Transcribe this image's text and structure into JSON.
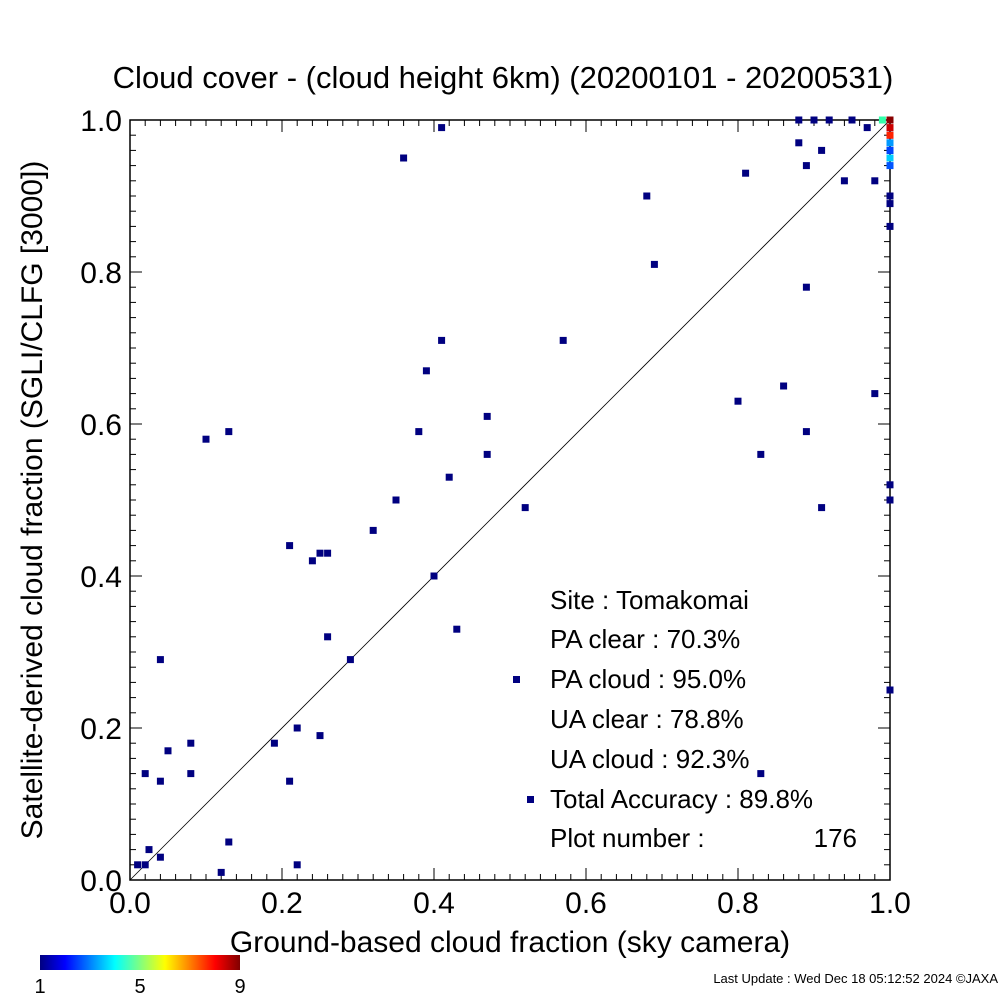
{
  "chart_data": {
    "type": "scatter",
    "title": "Cloud cover - (cloud height 6km)  (20200101 - 20200531)",
    "xlabel": "Ground-based cloud fraction (sky camera)",
    "ylabel": "Satellite-derived cloud fraction (SGLI/CLFG [3000])",
    "xlim": [
      0.0,
      1.0
    ],
    "ylim": [
      0.0,
      1.0
    ],
    "x_ticks": [
      "0.0",
      "0.2",
      "0.4",
      "0.6",
      "0.8",
      "1.0"
    ],
    "y_ticks": [
      "0.0",
      "0.2",
      "0.4",
      "0.6",
      "0.8",
      "1.0"
    ],
    "grid": false,
    "reference_line": "1:1 diagonal",
    "marker_color": "#000080",
    "points": [
      {
        "x": 0.01,
        "y": 0.02
      },
      {
        "x": 0.02,
        "y": 0.02
      },
      {
        "x": 0.02,
        "y": 0.14
      },
      {
        "x": 0.025,
        "y": 0.04
      },
      {
        "x": 0.04,
        "y": 0.29
      },
      {
        "x": 0.04,
        "y": 0.13
      },
      {
        "x": 0.04,
        "y": 0.03
      },
      {
        "x": 0.05,
        "y": 0.17
      },
      {
        "x": 0.08,
        "y": 0.18
      },
      {
        "x": 0.08,
        "y": 0.14
      },
      {
        "x": 0.1,
        "y": 0.58
      },
      {
        "x": 0.12,
        "y": 0.01
      },
      {
        "x": 0.13,
        "y": 0.59
      },
      {
        "x": 0.13,
        "y": 0.05
      },
      {
        "x": 0.19,
        "y": 0.18
      },
      {
        "x": 0.21,
        "y": 0.44
      },
      {
        "x": 0.21,
        "y": 0.13
      },
      {
        "x": 0.22,
        "y": 0.2
      },
      {
        "x": 0.22,
        "y": 0.02
      },
      {
        "x": 0.24,
        "y": 0.42
      },
      {
        "x": 0.25,
        "y": 0.43
      },
      {
        "x": 0.25,
        "y": 0.19
      },
      {
        "x": 0.26,
        "y": 0.43
      },
      {
        "x": 0.26,
        "y": 0.32
      },
      {
        "x": 0.29,
        "y": 0.29
      },
      {
        "x": 0.32,
        "y": 0.46
      },
      {
        "x": 0.35,
        "y": 0.5
      },
      {
        "x": 0.36,
        "y": 0.95
      },
      {
        "x": 0.38,
        "y": 0.59
      },
      {
        "x": 0.39,
        "y": 0.67
      },
      {
        "x": 0.4,
        "y": 0.4
      },
      {
        "x": 0.41,
        "y": 0.99
      },
      {
        "x": 0.41,
        "y": 0.71
      },
      {
        "x": 0.42,
        "y": 0.53
      },
      {
        "x": 0.43,
        "y": 0.33
      },
      {
        "x": 0.47,
        "y": 0.61
      },
      {
        "x": 0.47,
        "y": 0.56
      },
      {
        "x": 0.52,
        "y": 0.49
      },
      {
        "x": 0.57,
        "y": 0.71
      },
      {
        "x": 0.68,
        "y": 0.9
      },
      {
        "x": 0.69,
        "y": 0.81
      },
      {
        "x": 0.8,
        "y": 0.63
      },
      {
        "x": 0.81,
        "y": 0.93
      },
      {
        "x": 0.83,
        "y": 0.56
      },
      {
        "x": 0.83,
        "y": 0.14
      },
      {
        "x": 0.86,
        "y": 0.65
      },
      {
        "x": 0.88,
        "y": 1.0
      },
      {
        "x": 0.88,
        "y": 0.97
      },
      {
        "x": 0.89,
        "y": 0.94
      },
      {
        "x": 0.89,
        "y": 0.78
      },
      {
        "x": 0.89,
        "y": 0.59
      },
      {
        "x": 0.9,
        "y": 1.0
      },
      {
        "x": 0.91,
        "y": 0.96
      },
      {
        "x": 0.91,
        "y": 0.49
      },
      {
        "x": 0.92,
        "y": 1.0
      },
      {
        "x": 0.94,
        "y": 0.92
      },
      {
        "x": 0.95,
        "y": 1.0
      },
      {
        "x": 0.97,
        "y": 0.99
      },
      {
        "x": 0.98,
        "y": 0.92
      },
      {
        "x": 0.98,
        "y": 0.64
      },
      {
        "x": 1.0,
        "y": 0.98
      },
      {
        "x": 1.0,
        "y": 0.96
      },
      {
        "x": 1.0,
        "y": 0.9
      },
      {
        "x": 1.0,
        "y": 0.89
      },
      {
        "x": 1.0,
        "y": 0.86
      },
      {
        "x": 1.0,
        "y": 0.52
      },
      {
        "x": 1.0,
        "y": 0.5
      },
      {
        "x": 1.0,
        "y": 0.25
      }
    ],
    "dense_cells": [
      {
        "x": 0.99,
        "y": 1.0,
        "count": 4,
        "color": "#33ffaa"
      },
      {
        "x": 1.0,
        "y": 1.0,
        "count": 9,
        "color": "#880000"
      },
      {
        "x": 1.0,
        "y": 0.99,
        "count": 8,
        "color": "#cc0000"
      },
      {
        "x": 1.0,
        "y": 0.98,
        "count": 7,
        "color": "#ff2200"
      },
      {
        "x": 1.0,
        "y": 0.97,
        "count": 3,
        "color": "#0099ff"
      },
      {
        "x": 1.0,
        "y": 0.96,
        "count": 2,
        "color": "#0044ff"
      },
      {
        "x": 1.0,
        "y": 0.95,
        "count": 3,
        "color": "#00ccff"
      },
      {
        "x": 1.0,
        "y": 0.94,
        "count": 2,
        "color": "#0055ff"
      }
    ],
    "stats": {
      "site": "Site : Tomakomai",
      "pa_clear": "PA clear :  70.3%",
      "pa_cloud": "PA cloud :  95.0%",
      "ua_clear": "UA clear :  78.8%",
      "ua_cloud": "UA cloud :  92.3%",
      "total_accuracy": "Total Accuracy :  89.8%",
      "plot_number_label": "Plot number :",
      "plot_number_value": "176"
    },
    "colorbar": {
      "min": 1,
      "max": 9,
      "tick_labels": [
        "1",
        "5",
        "9"
      ],
      "colors": [
        "#000080",
        "#0000ff",
        "#0080ff",
        "#00ffff",
        "#80ff80",
        "#ffff00",
        "#ff8000",
        "#ff0000",
        "#800000"
      ]
    },
    "footer": "Last Update : Wed Dec 18 05:12:52 2024  ©JAXA"
  }
}
